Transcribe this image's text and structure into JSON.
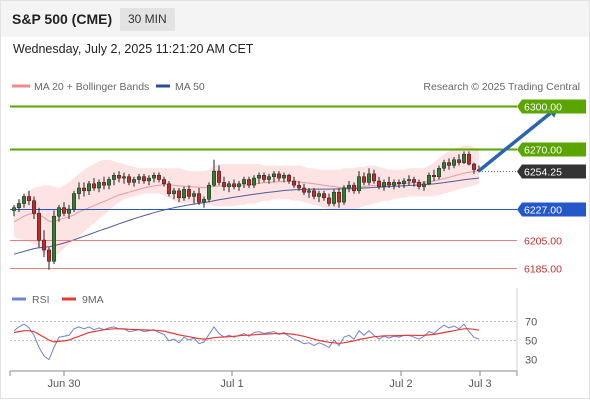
{
  "header": {
    "title": "S&P 500 (CME)",
    "timeframe": "30 MIN",
    "datetime": "Wednesday, July 2, 2025 11:21:20 AM CET"
  },
  "legend": {
    "bollinger": "MA 20 + Bollinger Bands",
    "ma50": "MA 50",
    "credit": "Research © 2025 Trading Central",
    "rsi": "RSI",
    "rsi_ma": "9MA"
  },
  "colors": {
    "up_candle": "#2e7d32",
    "down_candle": "#c62828",
    "resistance": "#5aa500",
    "pivot": "#2457c9",
    "support": "#e88080",
    "band_fill": "#fde3e3",
    "ma20": "#e79a9a",
    "ma50": "#4a5d9a",
    "arrow": "#2a63b3",
    "current": "#333333",
    "rsi": "#6b84d6",
    "rsi_ma": "#e53935"
  },
  "chart_data": [
    {
      "type": "candlestick",
      "y_range": [
        6176,
        6308
      ],
      "x_ticks": [
        "Jun 30",
        "Jul 1",
        "Jul 2",
        "Jul 3"
      ],
      "levels": [
        {
          "value": 6300.0,
          "label": "6300.00",
          "kind": "resistance"
        },
        {
          "value": 6270.0,
          "label": "6270.00",
          "kind": "resistance"
        },
        {
          "value": 6254.25,
          "label": "6254.25",
          "kind": "current"
        },
        {
          "value": 6227.0,
          "label": "6227.00",
          "kind": "pivot"
        },
        {
          "value": 6205.0,
          "label": "6205.00",
          "kind": "support"
        },
        {
          "value": 6185.0,
          "label": "6185.00",
          "kind": "support"
        }
      ],
      "arrow": {
        "from_index": 93,
        "from_value": 6254.25,
        "to_index": 109,
        "to_value": 6300.0
      },
      "candles": [
        [
          6226.0,
          6230.0,
          6222.0,
          6228.0
        ],
        [
          6228.0,
          6234.0,
          6225.0,
          6231.0
        ],
        [
          6231.0,
          6238.0,
          6228.0,
          6236.0
        ],
        [
          6236.0,
          6240.0,
          6230.0,
          6233.0
        ],
        [
          6233.0,
          6236.0,
          6220.0,
          6224.0
        ],
        [
          6224.0,
          6228.0,
          6200.0,
          6205.0
        ],
        [
          6205.0,
          6212.0,
          6193.0,
          6198.0
        ],
        [
          6198.0,
          6200.0,
          6184.0,
          6190.0
        ],
        [
          6190.0,
          6226.0,
          6188.0,
          6222.0
        ],
        [
          6222.0,
          6230.0,
          6218.0,
          6228.0
        ],
        [
          6228.0,
          6232.0,
          6222.0,
          6224.0
        ],
        [
          6224.0,
          6230.0,
          6220.0,
          6227.0
        ],
        [
          6227.0,
          6240.0,
          6225.0,
          6238.0
        ],
        [
          6238.0,
          6246.0,
          6234.0,
          6242.0
        ],
        [
          6242.0,
          6246.0,
          6236.0,
          6240.0
        ],
        [
          6240.0,
          6247.0,
          6237.0,
          6245.0
        ],
        [
          6245.0,
          6249.0,
          6240.0,
          6242.0
        ],
        [
          6242.0,
          6248.0,
          6239.0,
          6246.0
        ],
        [
          6246.0,
          6250.0,
          6241.0,
          6244.0
        ],
        [
          6244.0,
          6250.0,
          6241.0,
          6248.0
        ],
        [
          6248.0,
          6253.0,
          6244.0,
          6251.0
        ],
        [
          6251.0,
          6254.0,
          6246.0,
          6249.0
        ],
        [
          6249.0,
          6253.0,
          6245.0,
          6250.0
        ],
        [
          6250.0,
          6252.0,
          6244.0,
          6246.0
        ],
        [
          6246.0,
          6250.0,
          6243.0,
          6248.0
        ],
        [
          6248.0,
          6252.0,
          6245.0,
          6250.0
        ],
        [
          6250.0,
          6252.0,
          6245.0,
          6247.0
        ],
        [
          6247.0,
          6251.0,
          6244.0,
          6249.0
        ],
        [
          6249.0,
          6253.0,
          6246.0,
          6251.0
        ],
        [
          6251.0,
          6253.0,
          6246.0,
          6248.0
        ],
        [
          6248.0,
          6250.0,
          6243.0,
          6245.0
        ],
        [
          6245.0,
          6247.0,
          6236.0,
          6238.0
        ],
        [
          6238.0,
          6242.0,
          6234.0,
          6240.0
        ],
        [
          6240.0,
          6242.0,
          6232.0,
          6235.0
        ],
        [
          6235.0,
          6243.0,
          6233.0,
          6241.0
        ],
        [
          6241.0,
          6244.0,
          6234.0,
          6236.0
        ],
        [
          6236.0,
          6240.0,
          6231.0,
          6238.0
        ],
        [
          6238.0,
          6242.0,
          6230.0,
          6232.0
        ],
        [
          6232.0,
          6236.0,
          6228.0,
          6234.0
        ],
        [
          6234.0,
          6246.0,
          6232.0,
          6244.0
        ],
        [
          6244.0,
          6262.0,
          6243.0,
          6254.0
        ],
        [
          6254.0,
          6258.0,
          6244.0,
          6246.0
        ],
        [
          6246.0,
          6250.0,
          6240.0,
          6243.0
        ],
        [
          6243.0,
          6247.0,
          6239.0,
          6245.0
        ],
        [
          6245.0,
          6248.0,
          6241.0,
          6243.0
        ],
        [
          6243.0,
          6247.0,
          6240.0,
          6245.0
        ],
        [
          6245.0,
          6250.0,
          6242.0,
          6248.0
        ],
        [
          6248.0,
          6250.0,
          6242.0,
          6244.0
        ],
        [
          6244.0,
          6251.0,
          6242.0,
          6249.0
        ],
        [
          6249.0,
          6253.0,
          6245.0,
          6251.0
        ],
        [
          6251.0,
          6253.0,
          6246.0,
          6248.0
        ],
        [
          6248.0,
          6252.0,
          6245.0,
          6250.0
        ],
        [
          6250.0,
          6254.0,
          6246.0,
          6252.0
        ],
        [
          6252.0,
          6254.0,
          6247.0,
          6249.0
        ],
        [
          6249.0,
          6253.0,
          6246.0,
          6251.0
        ],
        [
          6251.0,
          6252.0,
          6245.0,
          6247.0
        ],
        [
          6247.0,
          6250.0,
          6242.0,
          6244.0
        ],
        [
          6244.0,
          6247.0,
          6240.0,
          6242.0
        ],
        [
          6242.0,
          6245.0,
          6237.0,
          6239.0
        ],
        [
          6239.0,
          6242.0,
          6235.0,
          6240.0
        ],
        [
          6240.0,
          6242.0,
          6234.0,
          6236.0
        ],
        [
          6236.0,
          6240.0,
          6232.0,
          6238.0
        ],
        [
          6238.0,
          6240.0,
          6233.0,
          6235.0
        ],
        [
          6235.0,
          6238.0,
          6229.0,
          6231.0
        ],
        [
          6231.0,
          6241.0,
          6229.0,
          6239.0
        ],
        [
          6239.0,
          6242.0,
          6228.0,
          6232.0
        ],
        [
          6232.0,
          6244.0,
          6230.0,
          6242.0
        ],
        [
          6242.0,
          6247.0,
          6239.0,
          6244.0
        ],
        [
          6244.0,
          6246.0,
          6238.0,
          6240.0
        ],
        [
          6240.0,
          6254.0,
          6238.0,
          6250.0
        ],
        [
          6250.0,
          6253.0,
          6244.0,
          6246.0
        ],
        [
          6246.0,
          6256.0,
          6244.0,
          6252.0
        ],
        [
          6252.0,
          6255.0,
          6245.0,
          6247.0
        ],
        [
          6247.0,
          6250.0,
          6241.0,
          6243.0
        ],
        [
          6243.0,
          6248.0,
          6240.0,
          6246.0
        ],
        [
          6246.0,
          6250.0,
          6242.0,
          6244.0
        ],
        [
          6244.0,
          6248.0,
          6241.0,
          6246.0
        ],
        [
          6246.0,
          6248.0,
          6242.0,
          6245.0
        ],
        [
          6245.0,
          6249.0,
          6242.0,
          6247.0
        ],
        [
          6247.0,
          6251.0,
          6244.0,
          6248.0
        ],
        [
          6248.0,
          6250.0,
          6243.0,
          6246.0
        ],
        [
          6246.0,
          6248.0,
          6241.0,
          6243.0
        ],
        [
          6243.0,
          6247.0,
          6240.0,
          6245.0
        ],
        [
          6245.0,
          6253.0,
          6244.0,
          6251.0
        ],
        [
          6251.0,
          6255.0,
          6247.0,
          6250.0
        ],
        [
          6250.0,
          6258.0,
          6248.0,
          6256.0
        ],
        [
          6256.0,
          6262.0,
          6254.0,
          6260.0
        ],
        [
          6260.0,
          6263.0,
          6255.0,
          6258.0
        ],
        [
          6258.0,
          6264.0,
          6256.0,
          6262.0
        ],
        [
          6262.0,
          6266.0,
          6258.0,
          6260.0
        ],
        [
          6260.0,
          6268.0,
          6259.0,
          6266.0
        ],
        [
          6266.0,
          6268.0,
          6258.0,
          6259.0
        ],
        [
          6259.0,
          6260.0,
          6252.0,
          6255.0
        ],
        [
          6255.0,
          6258.0,
          6253.0,
          6254.25
        ]
      ],
      "ma20": [
        6218.0,
        6220.0,
        6222.0,
        6223.5,
        6224.0,
        6223.0,
        6221.0,
        6218.5,
        6218.0,
        6219.5,
        6220.5,
        6221.5,
        6223.0,
        6225.0,
        6226.5,
        6228.0,
        6229.5,
        6231.0,
        6232.5,
        6234.0,
        6235.5,
        6237.0,
        6238.0,
        6239.0,
        6240.0,
        6241.0,
        6242.0,
        6242.8,
        6243.5,
        6244.0,
        6244.5,
        6244.3,
        6244.0,
        6243.5,
        6243.3,
        6243.0,
        6242.8,
        6242.5,
        6242.3,
        6242.5,
        6243.2,
        6243.5,
        6243.5,
        6243.6,
        6243.7,
        6243.9,
        6244.2,
        6244.4,
        6244.8,
        6245.3,
        6245.7,
        6246.0,
        6246.3,
        6246.5,
        6246.7,
        6246.7,
        6246.6,
        6246.3,
        6245.9,
        6245.5,
        6245.0,
        6244.5,
        6244.0,
        6243.4,
        6243.0,
        6242.5,
        6242.4,
        6242.3,
        6242.2,
        6242.6,
        6243.0,
        6243.5,
        6243.8,
        6244.0,
        6244.2,
        6244.4,
        6244.6,
        6244.9,
        6245.2,
        6245.6,
        6245.8,
        6246.0,
        6246.2,
        6246.6,
        6247.0,
        6247.8,
        6248.7,
        6249.6,
        6250.6,
        6251.5,
        6252.5,
        6253.2,
        6253.8,
        6254.3
      ],
      "ma50": [
        6195.0,
        6196.0,
        6197.0,
        6198.0,
        6199.0,
        6199.6,
        6200.0,
        6200.3,
        6201.0,
        6202.0,
        6203.0,
        6204.0,
        6205.2,
        6206.5,
        6207.7,
        6209.0,
        6210.3,
        6211.6,
        6212.8,
        6214.0,
        6215.3,
        6216.6,
        6217.8,
        6219.0,
        6220.2,
        6221.3,
        6222.4,
        6223.5,
        6224.5,
        6225.5,
        6226.4,
        6227.2,
        6228.0,
        6228.7,
        6229.4,
        6230.0,
        6230.6,
        6231.2,
        6231.7,
        6232.3,
        6233.0,
        6233.6,
        6234.2,
        6234.8,
        6235.4,
        6236.0,
        6236.5,
        6237.0,
        6237.5,
        6238.0,
        6238.5,
        6239.0,
        6239.4,
        6239.8,
        6240.2,
        6240.5,
        6240.7,
        6240.9,
        6241.0,
        6241.1,
        6241.2,
        6241.2,
        6241.2,
        6241.2,
        6241.3,
        6241.3,
        6241.4,
        6241.5,
        6241.6,
        6241.8,
        6242.0,
        6242.2,
        6242.4,
        6242.6,
        6242.8,
        6243.0,
        6243.2,
        6243.4,
        6243.6,
        6243.8,
        6244.0,
        6244.2,
        6244.4,
        6244.6,
        6244.9,
        6245.3,
        6245.8,
        6246.3,
        6246.8,
        6247.3,
        6247.8,
        6248.3,
        6248.7,
        6249.1
      ],
      "band_upper": [
        6229.0,
        6233.0,
        6237.0,
        6240.0,
        6242.0,
        6243.0,
        6244.0,
        6244.0,
        6243.0,
        6242.0,
        6244.0,
        6246.0,
        6249.0,
        6252.0,
        6255.0,
        6257.0,
        6259.0,
        6261.0,
        6262.0,
        6262.0,
        6261.0,
        6260.0,
        6259.0,
        6258.0,
        6257.0,
        6256.0,
        6256.0,
        6256.0,
        6256.0,
        6256.0,
        6256.0,
        6256.0,
        6256.0,
        6256.0,
        6255.0,
        6254.0,
        6254.0,
        6254.0,
        6254.0,
        6255.0,
        6258.0,
        6259.0,
        6259.0,
        6259.0,
        6259.0,
        6259.0,
        6259.0,
        6259.0,
        6259.0,
        6259.0,
        6258.0,
        6258.0,
        6258.0,
        6258.0,
        6258.0,
        6258.0,
        6258.0,
        6258.0,
        6257.0,
        6256.0,
        6256.0,
        6255.0,
        6255.0,
        6255.0,
        6255.0,
        6255.0,
        6256.0,
        6256.0,
        6256.0,
        6257.0,
        6257.0,
        6258.0,
        6258.0,
        6257.0,
        6256.0,
        6255.0,
        6255.0,
        6255.0,
        6255.0,
        6256.0,
        6256.0,
        6256.0,
        6256.0,
        6258.0,
        6260.0,
        6263.0,
        6266.0,
        6268.0,
        6270.0,
        6271.0,
        6272.0,
        6272.0,
        6271.0,
        6270.0
      ],
      "band_lower": [
        6207.0,
        6206.0,
        6205.0,
        6204.0,
        6202.0,
        6199.0,
        6196.0,
        6192.0,
        6192.0,
        6196.0,
        6199.0,
        6202.0,
        6205.0,
        6208.0,
        6211.0,
        6214.0,
        6217.0,
        6220.0,
        6223.0,
        6226.0,
        6229.0,
        6232.0,
        6234.0,
        6235.0,
        6236.0,
        6237.0,
        6238.0,
        6238.0,
        6238.0,
        6238.0,
        6237.0,
        6235.0,
        6233.0,
        6231.0,
        6231.0,
        6231.0,
        6231.0,
        6231.0,
        6230.0,
        6230.0,
        6229.0,
        6229.0,
        6229.0,
        6229.0,
        6229.0,
        6230.0,
        6230.0,
        6231.0,
        6231.0,
        6232.0,
        6233.0,
        6233.0,
        6234.0,
        6234.0,
        6234.0,
        6234.0,
        6233.0,
        6233.0,
        6232.0,
        6231.0,
        6230.0,
        6229.0,
        6228.0,
        6227.0,
        6227.0,
        6227.0,
        6227.0,
        6227.0,
        6227.0,
        6228.0,
        6229.0,
        6230.0,
        6231.0,
        6232.0,
        6233.0,
        6233.0,
        6234.0,
        6235.0,
        6235.0,
        6236.0,
        6236.0,
        6236.0,
        6236.0,
        6236.0,
        6236.0,
        6237.0,
        6238.0,
        6239.0,
        6240.0,
        6241.0,
        6242.0,
        6243.0,
        6244.0,
        6245.0
      ]
    },
    {
      "type": "line",
      "y_range": [
        20,
        80
      ],
      "y_ticks": [
        70,
        50,
        30
      ],
      "rsi": [
        60.0,
        64.0,
        67.0,
        63.0,
        55.0,
        42.0,
        33.0,
        29.0,
        42.0,
        53.0,
        54.0,
        55.0,
        62.0,
        64.0,
        62.0,
        64.0,
        61.0,
        63.0,
        61.0,
        63.0,
        64.0,
        62.0,
        62.0,
        59.0,
        60.0,
        61.0,
        59.0,
        60.0,
        61.0,
        58.0,
        56.0,
        49.0,
        51.0,
        47.0,
        53.0,
        50.0,
        52.0,
        46.0,
        48.0,
        56.0,
        64.0,
        57.0,
        53.0,
        55.0,
        53.0,
        55.0,
        57.0,
        54.0,
        58.0,
        59.0,
        57.0,
        58.0,
        59.0,
        56.0,
        58.0,
        54.0,
        51.0,
        49.0,
        46.0,
        47.0,
        44.0,
        47.0,
        45.0,
        42.0,
        50.0,
        44.0,
        53.0,
        55.0,
        51.0,
        60.0,
        55.0,
        60.0,
        55.0,
        51.0,
        54.0,
        52.0,
        54.0,
        53.0,
        55.0,
        55.0,
        53.0,
        51.0,
        54.0,
        59.0,
        57.0,
        62.0,
        66.0,
        63.0,
        65.0,
        62.0,
        67.0,
        59.0,
        53.0,
        51.0
      ],
      "rsi_ma": [
        58.0,
        59.0,
        60.0,
        60.0,
        59.0,
        56.0,
        53.0,
        50.0,
        48.0,
        48.5,
        49.0,
        50.0,
        52.0,
        54.0,
        56.0,
        58.0,
        59.0,
        60.0,
        61.0,
        61.5,
        62.0,
        62.0,
        61.8,
        61.5,
        61.2,
        61.0,
        60.8,
        60.6,
        60.4,
        60.0,
        59.5,
        58.0,
        57.0,
        55.5,
        54.5,
        53.5,
        52.5,
        51.5,
        51.0,
        51.5,
        52.5,
        53.0,
        53.2,
        53.5,
        54.0,
        54.5,
        55.0,
        55.2,
        55.6,
        56.0,
        56.2,
        56.5,
        56.7,
        56.8,
        56.9,
        56.5,
        56.0,
        55.0,
        54.0,
        52.5,
        51.0,
        49.5,
        48.5,
        47.5,
        47.0,
        46.5,
        47.0,
        48.0,
        49.0,
        50.5,
        51.5,
        52.5,
        53.5,
        54.0,
        54.5,
        54.5,
        54.6,
        54.7,
        54.8,
        55.0,
        55.0,
        54.8,
        55.0,
        55.5,
        56.0,
        57.0,
        58.0,
        59.0,
        60.0,
        61.0,
        62.0,
        62.0,
        61.5,
        60.5
      ]
    }
  ]
}
